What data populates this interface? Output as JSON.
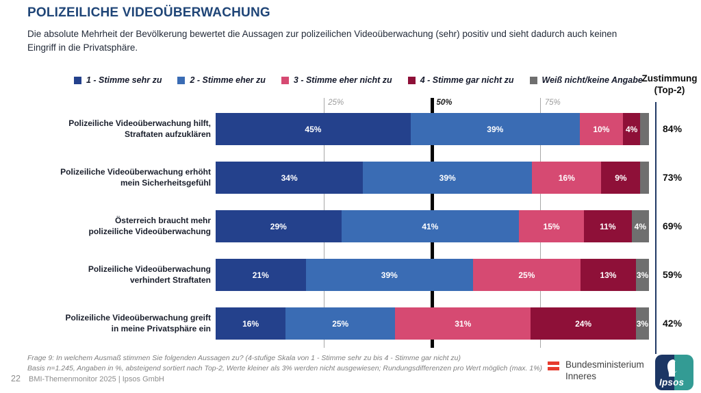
{
  "slide": {
    "title": "POLIZEILICHE VIDEOÜBERWACHUNG",
    "subtitle_lines": [
      "Die absolute Mehrheit der Bevölkerung bewertet die Aussagen zur polizeilichen Videoüberwachung (sehr) positiv und sieht dadurch auch keinen",
      "Eingriff in die Privatsphäre."
    ],
    "footnote_lines": [
      "Frage 9:  In welchem Ausmaß stimmen Sie folgenden Aussagen zu? (4-stufige Skala von 1 - Stimme sehr zu bis 4 - Stimme gar nicht zu)",
      "Basis n=1.245, Angaben in %, absteigend sortiert nach Top-2, Werte kleiner als 3% werden nicht ausgewiesen; Rundungsdifferenzen pro Wert möglich (max. 1%)"
    ],
    "page_number": "22",
    "source": "BMI-Themenmonitor 2025  |  Ipsos GmbH"
  },
  "legend": {
    "items": [
      {
        "label": "1 - Stimme sehr zu",
        "color": "#24418c"
      },
      {
        "label": "2 - Stimme eher zu",
        "color": "#3a6cb4"
      },
      {
        "label": "3 - Stimme eher nicht zu",
        "color": "#d64a72"
      },
      {
        "label": "4 - Stimme gar nicht zu",
        "color": "#8e1038"
      },
      {
        "label": "Weiß nicht/keine Angabe",
        "color": "#6f6f6f"
      }
    ]
  },
  "zustimmung_header_lines": [
    "Zustimmung",
    "(Top-2)"
  ],
  "chart_data": {
    "type": "bar",
    "orientation": "horizontal-stacked",
    "unit": "%",
    "xlim": [
      0,
      100
    ],
    "grid": true,
    "gridlines": [
      {
        "pct": 25,
        "label": "25%",
        "style": "thin"
      },
      {
        "pct": 50,
        "label": "50%",
        "style": "thick"
      },
      {
        "pct": 75,
        "label": "75%",
        "style": "thin"
      }
    ],
    "series_names": [
      "1 - Stimme sehr zu",
      "2 - Stimme eher zu",
      "3 - Stimme eher nicht zu",
      "4 - Stimme gar nicht zu",
      "Weiß nicht/keine Angabe"
    ],
    "series_colors": [
      "#24418c",
      "#3a6cb4",
      "#d64a72",
      "#8e1038",
      "#6f6f6f"
    ],
    "rows": [
      {
        "label_lines": [
          "Polizeiliche Videoüberwachung hilft,",
          "Straftaten aufzuklären"
        ],
        "values": [
          45,
          39,
          10,
          4,
          2
        ],
        "value_labels": [
          "45%",
          "39%",
          "10%",
          "4%",
          ""
        ],
        "top2": "84%"
      },
      {
        "label_lines": [
          "Polizeiliche Videoüberwachung erhöht",
          "mein Sicherheitsgefühl"
        ],
        "values": [
          34,
          39,
          16,
          9,
          2
        ],
        "value_labels": [
          "34%",
          "39%",
          "16%",
          "9%",
          ""
        ],
        "top2": "73%"
      },
      {
        "label_lines": [
          "Österreich braucht mehr",
          "polizeiliche Videoüberwachung"
        ],
        "values": [
          29,
          41,
          15,
          11,
          4
        ],
        "value_labels": [
          "29%",
          "41%",
          "15%",
          "11%",
          "4%"
        ],
        "top2": "69%"
      },
      {
        "label_lines": [
          "Polizeiliche Videoüberwachung",
          "verhindert Straftaten"
        ],
        "values": [
          21,
          39,
          25,
          13,
          3
        ],
        "value_labels": [
          "21%",
          "39%",
          "25%",
          "13%",
          "3%"
        ],
        "top2": "59%"
      },
      {
        "label_lines": [
          "Polizeiliche Videoüberwachung greift",
          "in meine Privatsphäre ein"
        ],
        "values": [
          16,
          25,
          31,
          24,
          3
        ],
        "value_labels": [
          "16%",
          "25%",
          "31%",
          "24%",
          "3%"
        ],
        "top2": "42%"
      }
    ]
  },
  "footer_logos": {
    "bmi_text_lines": [
      "Bundesministerium",
      "Inneres"
    ],
    "ipsos_label": "Ipsos"
  },
  "colors": {
    "title": "#1f4577",
    "top2_separator": "#203864",
    "gridline_thin": "#a6a6a6",
    "gridline_thick": "#050505",
    "bmi_red": "#e63b2e",
    "ipsos_navy": "#1c3664",
    "ipsos_teal": "#339b94"
  }
}
